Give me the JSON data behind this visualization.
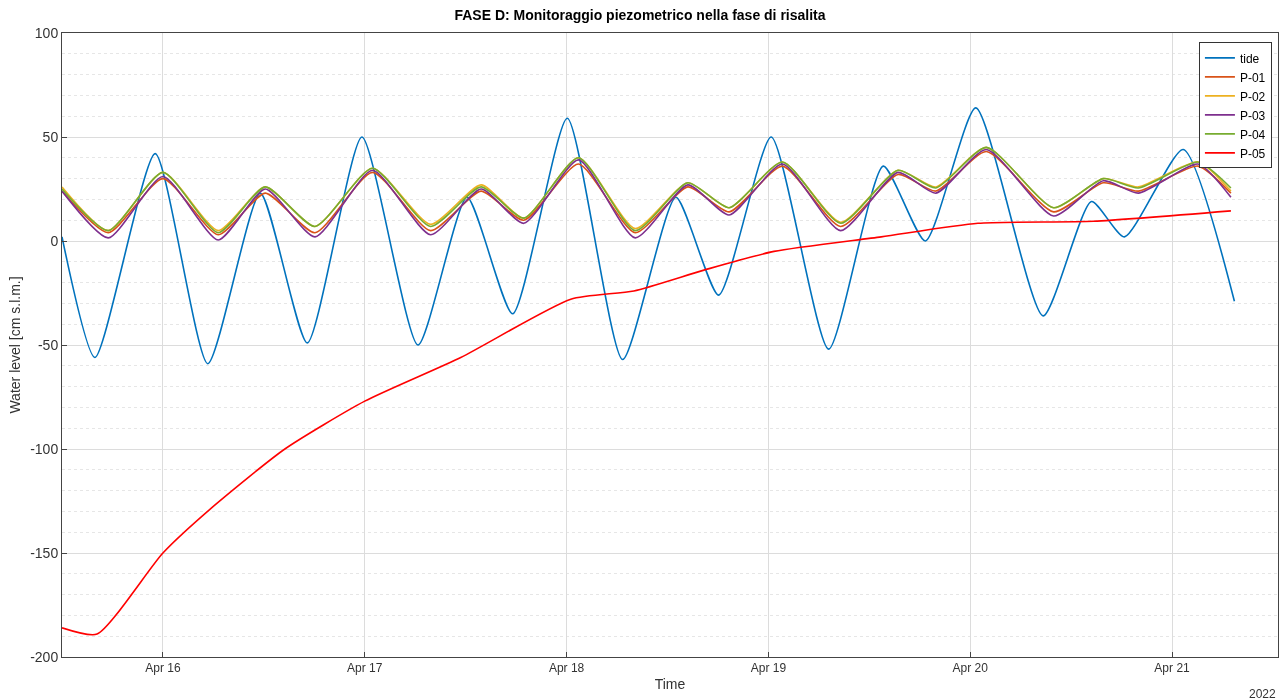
{
  "chart_data": {
    "type": "line",
    "title": "FASE D: Monitoraggio piezometrico nella fase di risalita",
    "xlabel": "Time",
    "ylabel": "Water level [cm s.l.m.]",
    "annotations": [
      "2022"
    ],
    "xlim": [
      "2022-04-15T12:00",
      "2022-04-21T12:36"
    ],
    "xticks": [
      {
        "value": "2022-04-16",
        "label": "Apr 16"
      },
      {
        "value": "2022-04-17",
        "label": "Apr 17"
      },
      {
        "value": "2022-04-18",
        "label": "Apr 18"
      },
      {
        "value": "2022-04-19",
        "label": "Apr 19"
      },
      {
        "value": "2022-04-20",
        "label": "Apr 20"
      },
      {
        "value": "2022-04-21",
        "label": "Apr 21"
      }
    ],
    "ylim": [
      -200,
      100
    ],
    "yticks": [
      -200,
      -150,
      -100,
      -50,
      0,
      50,
      100
    ],
    "grid": true,
    "legend": "top right",
    "series": [
      {
        "name": "tide",
        "color": "#0072bd",
        "x": [
          "2022-04-15T12:00",
          "2022-04-15T15:55",
          "2022-04-15T23:05",
          "2022-04-16T05:20",
          "2022-04-16T11:35",
          "2022-04-16T17:10",
          "2022-04-16T23:40",
          "2022-04-17T06:20",
          "2022-04-17T12:10",
          "2022-04-17T17:35",
          "2022-04-18T00:05",
          "2022-04-18T06:40",
          "2022-04-18T13:00",
          "2022-04-18T18:05",
          "2022-04-19T00:20",
          "2022-04-19T07:10",
          "2022-04-19T13:40",
          "2022-04-19T18:40",
          "2022-04-20T00:40",
          "2022-04-20T08:40",
          "2022-04-20T14:25",
          "2022-04-20T18:20",
          "2022-04-21T01:20",
          "2022-04-21T07:25"
        ],
        "values": [
          2,
          -56,
          42,
          -59,
          23,
          -49,
          50,
          -50,
          21,
          -35,
          59,
          -57,
          21,
          -26,
          50,
          -52,
          36,
          0,
          64,
          -36,
          19,
          2,
          44,
          -29
        ]
      },
      {
        "name": "P-01",
        "color": "#d95319",
        "values": [
          24,
          4,
          30,
          3,
          23,
          4,
          33,
          5,
          24,
          10,
          37,
          4,
          26,
          14,
          36,
          7,
          32,
          24,
          43,
          14,
          28,
          24,
          36,
          23
        ]
      },
      {
        "name": "P-02",
        "color": "#edb120",
        "values": [
          26,
          5,
          33,
          5,
          26,
          7,
          35,
          8,
          27,
          11,
          40,
          6,
          28,
          16,
          38,
          9,
          34,
          26,
          45,
          16,
          30,
          26,
          38,
          24
        ]
      },
      {
        "name": "P-03",
        "color": "#7e2f8e",
        "values": [
          24,
          1.5,
          31,
          0.5,
          25,
          2,
          34,
          3,
          25,
          8.5,
          39,
          1.5,
          27,
          12.5,
          37,
          5,
          33,
          23,
          44,
          12,
          29,
          23,
          37,
          21
        ]
      },
      {
        "name": "P-04",
        "color": "#77ac30",
        "values": [
          25,
          5,
          33,
          4,
          26,
          7,
          35,
          7,
          26,
          11,
          40,
          5,
          28,
          16,
          38,
          8.5,
          34,
          25.5,
          45,
          16,
          30,
          25.5,
          38,
          25.5
        ]
      },
      {
        "name": "P-05",
        "color": "#ff0000",
        "x": [
          "2022-04-15T12:00",
          "2022-04-15T16:10",
          "2022-04-16T00:00",
          "2022-04-16T06:10",
          "2022-04-16T14:30",
          "2022-04-17T00:00",
          "2022-04-17T11:25",
          "2022-04-18T00:30",
          "2022-04-18T08:00",
          "2022-04-18T16:20",
          "2022-04-19T00:40",
          "2022-04-19T13:25",
          "2022-04-20T00:55",
          "2022-04-20T14:40",
          "2022-04-21T07:00"
        ],
        "values": [
          -186,
          -189,
          -150,
          -127,
          -100,
          -77,
          -56,
          -28,
          -24,
          -14,
          -5,
          2,
          8.5,
          9.5,
          14.5
        ]
      }
    ],
    "x": [
      "2022-04-15T12:00",
      "2022-04-15T17:30",
      "2022-04-16T00:00",
      "2022-04-16T06:35",
      "2022-04-16T12:10",
      "2022-04-16T18:05",
      "2022-04-17T00:55",
      "2022-04-17T07:50",
      "2022-04-17T13:50",
      "2022-04-17T18:55",
      "2022-04-18T01:25",
      "2022-04-18T08:10",
      "2022-04-18T14:25",
      "2022-04-18T19:20",
      "2022-04-19T01:40",
      "2022-04-19T08:35",
      "2022-04-19T15:25",
      "2022-04-19T19:55",
      "2022-04-20T01:55",
      "2022-04-20T09:55",
      "2022-04-20T15:50",
      "2022-04-20T20:00",
      "2022-04-21T03:05",
      "2022-04-21T07:00"
    ]
  }
}
